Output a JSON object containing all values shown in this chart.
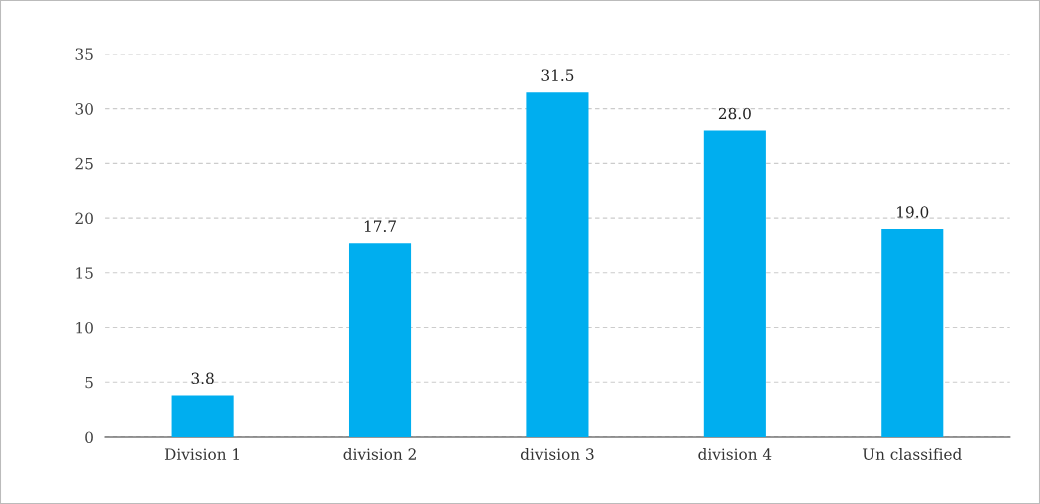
{
  "chart_data": {
    "type": "bar",
    "categories": [
      "Division 1",
      "division 2",
      "division 3",
      "division 4",
      "Un classified"
    ],
    "values": [
      3.8,
      17.7,
      31.5,
      28.0,
      19.0
    ],
    "value_labels": [
      "3.8",
      "17.7",
      "31.5",
      "28.0",
      "19.0"
    ],
    "color": "#00aeef",
    "ylim": [
      0,
      35
    ],
    "yticks": [
      0,
      5,
      10,
      15,
      20,
      25,
      30,
      35
    ],
    "grid": "y"
  }
}
